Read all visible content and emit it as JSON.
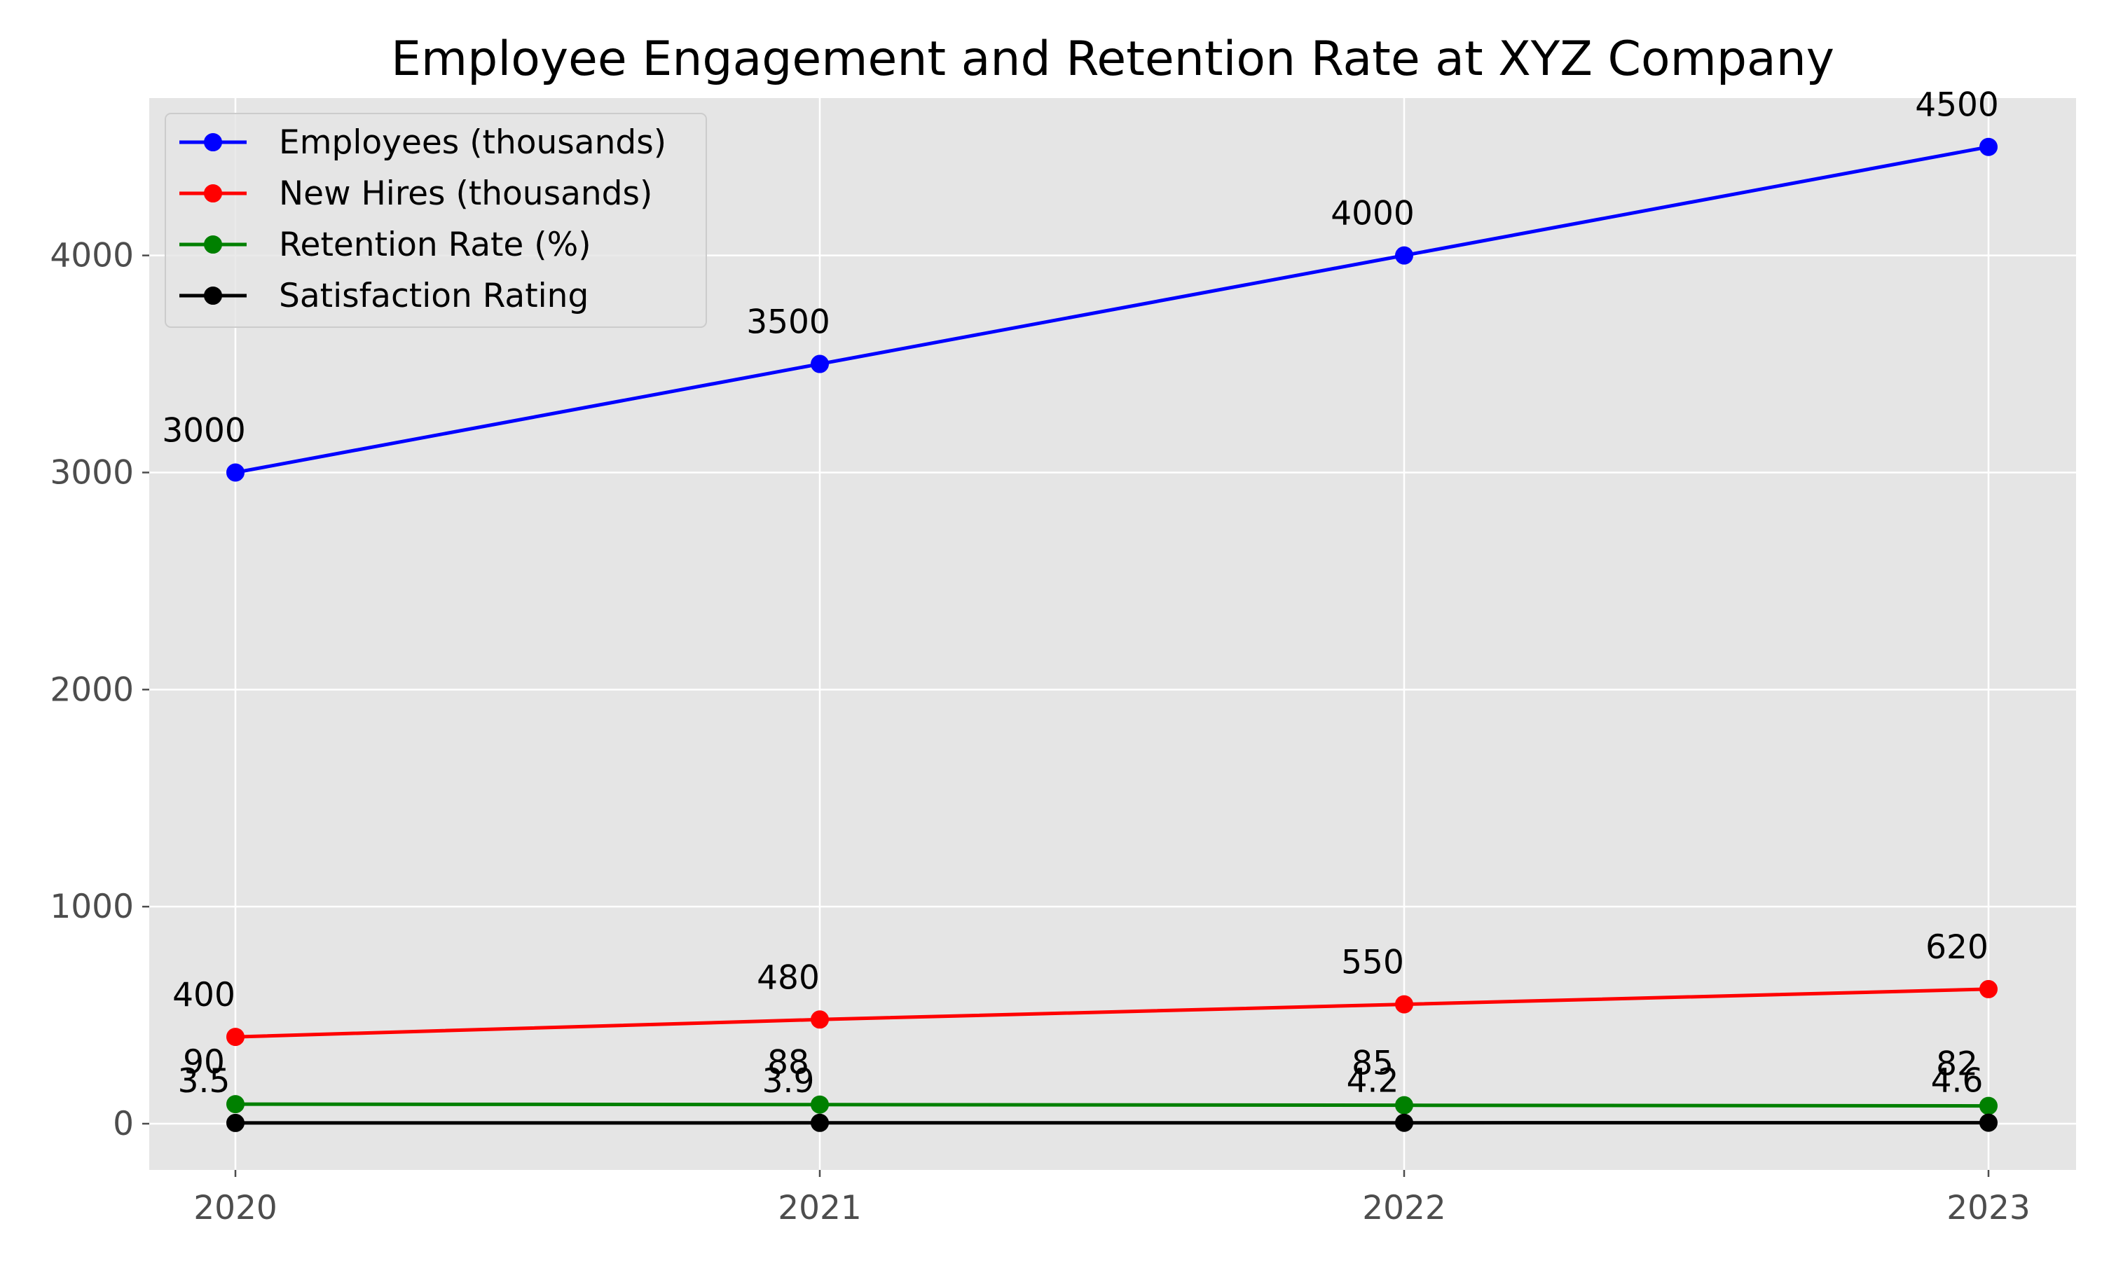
{
  "chart_data": {
    "type": "line",
    "title": "Employee Engagement and Retention Rate at XYZ Company",
    "xlabel": "",
    "ylabel": "",
    "categories": [
      "2020",
      "2021",
      "2022",
      "2023"
    ],
    "ylim": [
      -213,
      4725
    ],
    "yticks": [
      0,
      1000,
      2000,
      3000,
      4000
    ],
    "grid": true,
    "legend_position": "top-left",
    "background": "#e5e5e5",
    "series": [
      {
        "name": "Employees (thousands)",
        "color": "#0000ff",
        "values": [
          3000,
          3500,
          4000,
          4500
        ],
        "labels": [
          "3000",
          "3500",
          "4000",
          "4500"
        ]
      },
      {
        "name": "New Hires (thousands)",
        "color": "#ff0000",
        "values": [
          400,
          480,
          550,
          620
        ],
        "labels": [
          "400",
          "480",
          "550",
          "620"
        ]
      },
      {
        "name": "Retention Rate (%)",
        "color": "#008000",
        "values": [
          90,
          88,
          85,
          82
        ],
        "labels": [
          "90",
          "88",
          "85",
          "82"
        ]
      },
      {
        "name": "Satisfaction Rating",
        "color": "#000000",
        "values": [
          3.5,
          3.9,
          4.2,
          4.6
        ],
        "labels": [
          "3.5",
          "3.9",
          "4.2",
          "4.6"
        ]
      }
    ]
  }
}
